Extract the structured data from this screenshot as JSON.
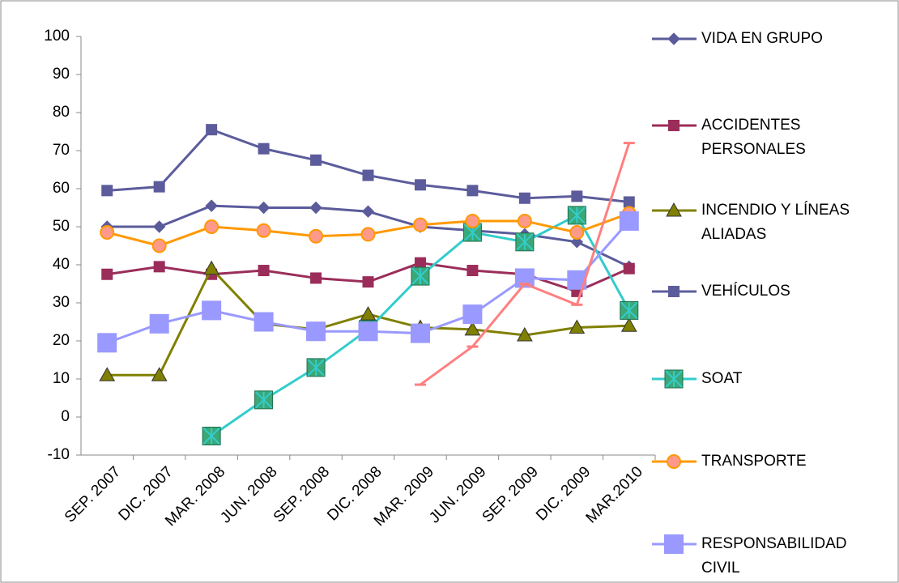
{
  "chart_data": {
    "type": "line",
    "categories": [
      "SEP. 2007",
      "DIC. 2007",
      "MAR. 2008",
      "JUN. 2008",
      "SEP. 2008",
      "DIC. 2008",
      "MAR. 2009",
      "JUN. 2009",
      "SEP. 2009",
      "DIC. 2009",
      "MAR.2010"
    ],
    "ylim": [
      -10,
      100
    ],
    "yticks": [
      -10,
      0,
      10,
      20,
      30,
      40,
      50,
      60,
      70,
      80,
      90,
      100
    ],
    "series": [
      {
        "name": "VIDA EN GRUPO",
        "color": "#5b5b9b",
        "marker": "diamond",
        "values": [
          50,
          50,
          55.5,
          55,
          55,
          54,
          50,
          49,
          48,
          46,
          39.5
        ]
      },
      {
        "name": "ACCIDENTES PERSONALES",
        "color": "#9b2d5a",
        "marker": "square",
        "values": [
          37.5,
          39.5,
          37.5,
          38.5,
          36.5,
          35.5,
          40.5,
          38.5,
          37.5,
          33,
          39
        ]
      },
      {
        "name": "INCENDIO Y LÍNEAS ALIADAS",
        "color": "#808000",
        "marker": "triangle",
        "values": [
          11,
          11,
          39,
          24.5,
          23,
          27,
          23.5,
          23,
          21.5,
          23.5,
          24
        ]
      },
      {
        "name": "VEHÍCULOS",
        "color": "#5c5c9c",
        "marker": "square",
        "values": [
          59.5,
          60.5,
          75.5,
          70.5,
          67.5,
          63.5,
          61,
          59.5,
          57.5,
          58,
          56.5
        ]
      },
      {
        "name": "SOAT",
        "color": "#33cccc",
        "marker": "xsquare",
        "values": [
          null,
          null,
          -5,
          4.5,
          13,
          23,
          37,
          48.5,
          46,
          53,
          28
        ]
      },
      {
        "name": "TRANSPORTE",
        "color": "#ff9900",
        "marker": "circle",
        "values": [
          48.5,
          45,
          50,
          49,
          47.5,
          48,
          50.5,
          51.5,
          51.5,
          48.5,
          53.5
        ]
      },
      {
        "name": "RESPONSABILIDAD CIVIL",
        "color": "#9999ff",
        "marker": "bigsquare",
        "values": [
          19.5,
          24.5,
          28,
          25,
          22.5,
          22.5,
          22,
          27,
          36.5,
          36,
          51.5
        ]
      },
      {
        "color": "#ff7f7f",
        "marker": "dash",
        "values": [
          null,
          null,
          null,
          null,
          null,
          null,
          8.5,
          18.5,
          35,
          29.5,
          72
        ]
      }
    ]
  }
}
